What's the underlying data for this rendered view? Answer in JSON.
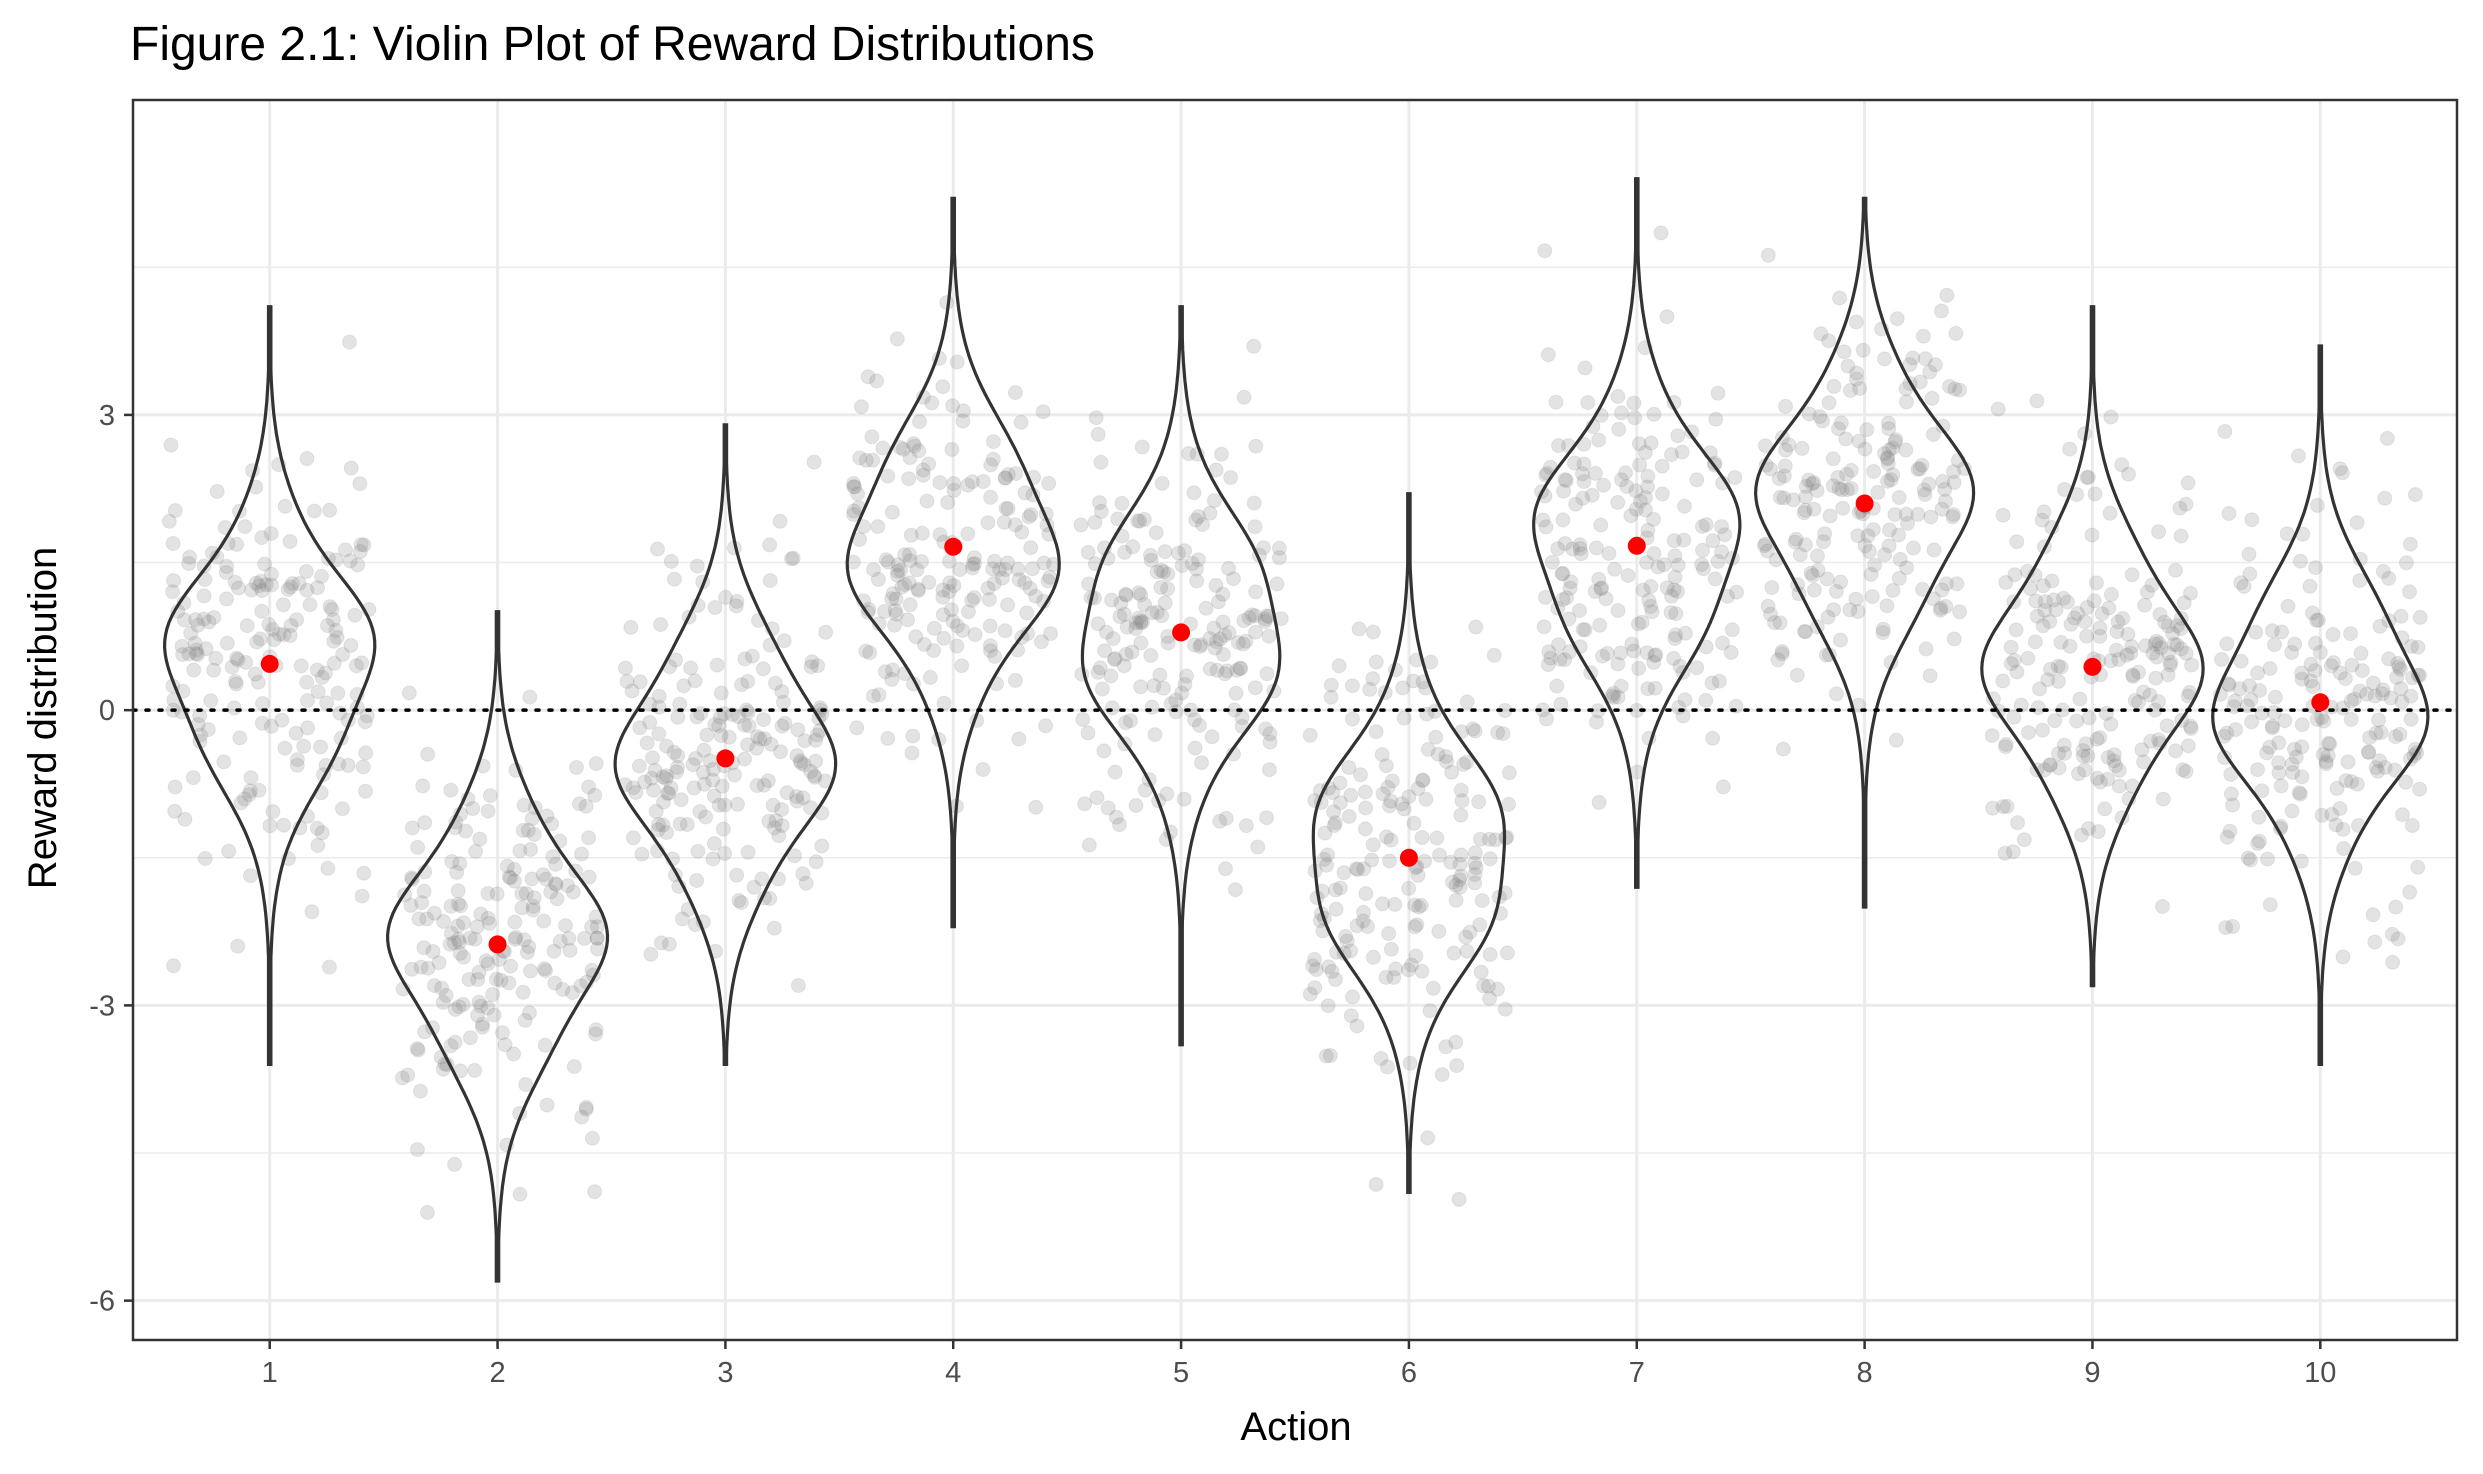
{
  "chart_data": {
    "type": "violin",
    "title": "Figure 2.1: Violin Plot of Reward Distributions",
    "xlabel": "Action",
    "ylabel": "Reward distribution",
    "categories": [
      "1",
      "2",
      "3",
      "4",
      "5",
      "6",
      "7",
      "8",
      "9",
      "10"
    ],
    "ylim": [
      -6.4,
      6.2
    ],
    "yticks": [
      -6,
      -3,
      0,
      3
    ],
    "ytick_labels": [
      "-6",
      "-3",
      "0",
      "3"
    ],
    "means": [
      0.47,
      -2.38,
      -0.49,
      1.66,
      0.79,
      -1.5,
      1.67,
      2.1,
      0.44,
      0.08
    ],
    "violin_ranges": [
      [
        -3.6,
        4.1
      ],
      [
        -5.8,
        1.0
      ],
      [
        -3.6,
        2.9
      ],
      [
        -2.2,
        5.2
      ],
      [
        -3.4,
        4.1
      ],
      [
        -4.9,
        2.2
      ],
      [
        -1.8,
        5.4
      ],
      [
        -2.0,
        5.2
      ],
      [
        -2.8,
        4.1
      ],
      [
        -3.6,
        3.7
      ]
    ],
    "sd": 1,
    "points_per_action": 200,
    "reference_line": {
      "y": 0,
      "style": "dotted"
    },
    "grid": true,
    "colors": {
      "mean_point": "#ff0000",
      "violin_outline": "#333333",
      "sample_point": "#808080",
      "grid": "#ebebeb",
      "panel_border": "#333333"
    }
  }
}
